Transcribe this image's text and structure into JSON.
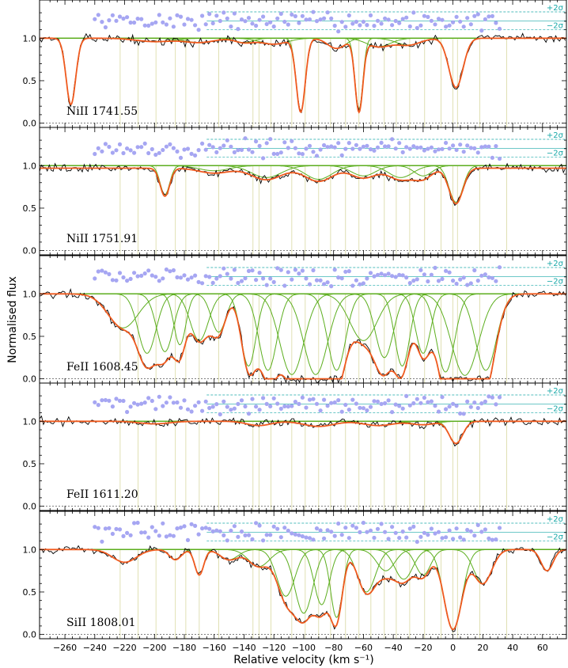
{
  "chart_data": {
    "type": "line",
    "xlabel": "Relative velocity (km s⁻¹)",
    "ylabel": "Normalised flux",
    "xlim": [
      -277,
      76
    ],
    "ylim": [
      -0.05,
      1.45
    ],
    "x_ticks": [
      -260,
      -240,
      -220,
      -200,
      -180,
      -160,
      -140,
      -120,
      -100,
      -80,
      -60,
      -40,
      -20,
      0,
      20,
      40,
      60
    ],
    "x_tick_labels": [
      "−260",
      "−240",
      "−220",
      "−200",
      "−180",
      "−160",
      "−140",
      "−120",
      "−100",
      "−80",
      "−60",
      "−40",
      "−20",
      "0",
      "20",
      "40",
      "60"
    ],
    "y_ticks": [
      0.0,
      0.5,
      1.0
    ],
    "y_tick_labels": [
      "0.0",
      "0.5",
      "1.0"
    ],
    "residual_labels": [
      "+2σ",
      "−2σ"
    ],
    "component_velocities": [
      -223,
      -211,
      -199,
      -186,
      -179,
      -170,
      -157,
      -134,
      -130,
      -122,
      -108,
      -99,
      -90,
      -82,
      -72,
      -63,
      -55,
      -46,
      -38,
      -29,
      -19,
      -8,
      0,
      3,
      18,
      36
    ],
    "colors": {
      "data": "#000000",
      "total_fit": "#f05a1e",
      "components": "#5cae1e",
      "residuals": "#a6a6f2",
      "sigma_lines": "#17a8a8",
      "blends": "#a040d0",
      "component_markers": "#d8d8a0"
    },
    "panels": [
      {
        "ion": "NiII 1741.55",
        "continuum": 1.0,
        "lines": [
          [
            -256,
            0.78,
            3.2
          ],
          [
            -102,
            0.86,
            3.0
          ],
          [
            -63,
            0.84,
            2.6
          ],
          [
            2,
            0.58,
            4.8
          ],
          [
            -78,
            0.12,
            6.0
          ],
          [
            -50,
            0.1,
            8.0
          ],
          [
            -30,
            0.08,
            8.0
          ],
          [
            -120,
            0.07,
            9.0
          ],
          [
            -170,
            0.05,
            10.0
          ],
          [
            -200,
            0.04,
            12.0
          ],
          [
            -140,
            0.05,
            6.0
          ]
        ]
      },
      {
        "ion": "NiII 1751.91",
        "continuum": 0.97,
        "lines": [
          [
            -193,
            0.34,
            3.2
          ],
          [
            2,
            0.43,
            4.6
          ],
          [
            -125,
            0.14,
            10.0
          ],
          [
            -90,
            0.16,
            9.0
          ],
          [
            -60,
            0.12,
            8.0
          ],
          [
            -35,
            0.14,
            8.0
          ],
          [
            -20,
            0.12,
            6.0
          ],
          [
            -160,
            0.06,
            10.0
          ]
        ]
      },
      {
        "ion": "FeII 1608.45",
        "continuum": 1.0,
        "lines": [
          [
            -221,
            0.4,
            10.0
          ],
          [
            -205,
            0.7,
            6.0
          ],
          [
            -193,
            0.68,
            5.5
          ],
          [
            -183,
            0.6,
            4.0
          ],
          [
            -170,
            0.55,
            6.0
          ],
          [
            -157,
            0.45,
            5.0
          ],
          [
            -137,
            0.85,
            5.0
          ],
          [
            -124,
            0.9,
            6.0
          ],
          [
            -108,
            0.95,
            8.0
          ],
          [
            -92,
            0.95,
            8.0
          ],
          [
            -78,
            0.9,
            6.0
          ],
          [
            -60,
            0.55,
            9.0
          ],
          [
            -46,
            0.75,
            6.0
          ],
          [
            -34,
            0.85,
            5.0
          ],
          [
            -20,
            0.7,
            5.0
          ],
          [
            -5,
            0.92,
            6.0
          ],
          [
            8,
            0.96,
            9.0
          ],
          [
            22,
            0.9,
            7.0
          ]
        ]
      },
      {
        "ion": "FeII 1611.20",
        "continuum": 1.0,
        "lines": [
          [
            2,
            0.26,
            4.5
          ],
          [
            -130,
            0.05,
            8.0
          ],
          [
            -90,
            0.06,
            10.0
          ],
          [
            -50,
            0.05,
            10.0
          ],
          [
            -20,
            0.04,
            8.0
          ],
          [
            -200,
            0.03,
            10.0
          ]
        ]
      },
      {
        "ion": "SiII 1808.01",
        "continuum": 1.0,
        "lines": [
          [
            -220,
            0.15,
            8.0
          ],
          [
            -186,
            0.12,
            4.0
          ],
          [
            -170,
            0.3,
            3.0
          ],
          [
            -150,
            0.12,
            6.0
          ],
          [
            -130,
            0.2,
            7.0
          ],
          [
            -112,
            0.55,
            6.0
          ],
          [
            -100,
            0.75,
            6.0
          ],
          [
            -88,
            0.65,
            5.0
          ],
          [
            -78,
            0.8,
            4.0
          ],
          [
            -58,
            0.5,
            6.0
          ],
          [
            -45,
            0.25,
            6.0
          ],
          [
            -33,
            0.35,
            6.0
          ],
          [
            -20,
            0.3,
            5.0
          ],
          [
            0,
            0.94,
            6.0
          ],
          [
            20,
            0.4,
            6.0
          ],
          [
            63,
            0.25,
            4.0
          ]
        ]
      }
    ]
  }
}
